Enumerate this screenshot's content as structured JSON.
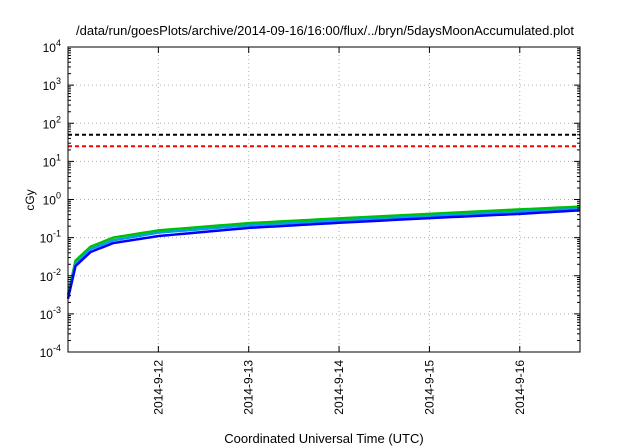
{
  "chart_data": {
    "type": "line",
    "title": "/data/run/goesPlots/archive/2014-09-16/16:00/flux/../bryn/5daysMoonAccumulated.plot",
    "xlabel": "Coordinated Universal Time (UTC)",
    "ylabel": "cGy",
    "x_type": "time",
    "xlim": [
      "2014-09-11 00:00",
      "2014-09-16 16:00"
    ],
    "x_ticks": [
      "2014-9-12",
      "2014-9-13",
      "2014-9-14",
      "2014-9-15",
      "2014-9-16"
    ],
    "y_scale": "log",
    "ylim": [
      0.0001,
      10000
    ],
    "y_ticks": [
      {
        "base": "10",
        "exp": "-4"
      },
      {
        "base": "10",
        "exp": "-3"
      },
      {
        "base": "10",
        "exp": "-2"
      },
      {
        "base": "10",
        "exp": "-1"
      },
      {
        "base": "10",
        "exp": "0"
      },
      {
        "base": "10",
        "exp": "1"
      },
      {
        "base": "10",
        "exp": "2"
      },
      {
        "base": "10",
        "exp": "3"
      },
      {
        "base": "10",
        "exp": "4"
      }
    ],
    "grid": true,
    "series": [
      {
        "color": "#00c000",
        "style": "solid",
        "x": [
          "2014-09-11 00:00",
          "2014-09-11 02:00",
          "2014-09-11 06:00",
          "2014-09-11 12:00",
          "2014-09-12 00:00",
          "2014-09-13 00:00",
          "2014-09-14 00:00",
          "2014-09-15 00:00",
          "2014-09-16 00:00",
          "2014-09-16 16:00"
        ],
        "y": [
          0.0032,
          0.025,
          0.058,
          0.1,
          0.155,
          0.24,
          0.32,
          0.42,
          0.55,
          0.65
        ]
      },
      {
        "color": "#00a0e0",
        "style": "solid",
        "x": [
          "2014-09-11 00:00",
          "2014-09-11 02:00",
          "2014-09-11 06:00",
          "2014-09-11 12:00",
          "2014-09-12 00:00",
          "2014-09-13 00:00",
          "2014-09-14 00:00",
          "2014-09-15 00:00",
          "2014-09-16 00:00",
          "2014-09-16 16:00"
        ],
        "y": [
          0.003,
          0.021,
          0.05,
          0.085,
          0.135,
          0.21,
          0.28,
          0.37,
          0.48,
          0.57
        ]
      },
      {
        "color": "#0000ff",
        "style": "solid",
        "x": [
          "2014-09-11 00:00",
          "2014-09-11 02:00",
          "2014-09-11 06:00",
          "2014-09-11 12:00",
          "2014-09-12 00:00",
          "2014-09-13 00:00",
          "2014-09-14 00:00",
          "2014-09-15 00:00",
          "2014-09-16 00:00",
          "2014-09-16 16:00"
        ],
        "y": [
          0.0025,
          0.018,
          0.042,
          0.072,
          0.11,
          0.18,
          0.245,
          0.325,
          0.42,
          0.52
        ]
      },
      {
        "color": "#000000",
        "style": "dashed",
        "x": [
          "2014-09-11 00:00",
          "2014-09-16 16:00"
        ],
        "y": [
          50,
          50
        ]
      },
      {
        "color": "#ff0000",
        "style": "dashed",
        "x": [
          "2014-09-11 00:00",
          "2014-09-16 16:00"
        ],
        "y": [
          25,
          25
        ]
      }
    ]
  }
}
